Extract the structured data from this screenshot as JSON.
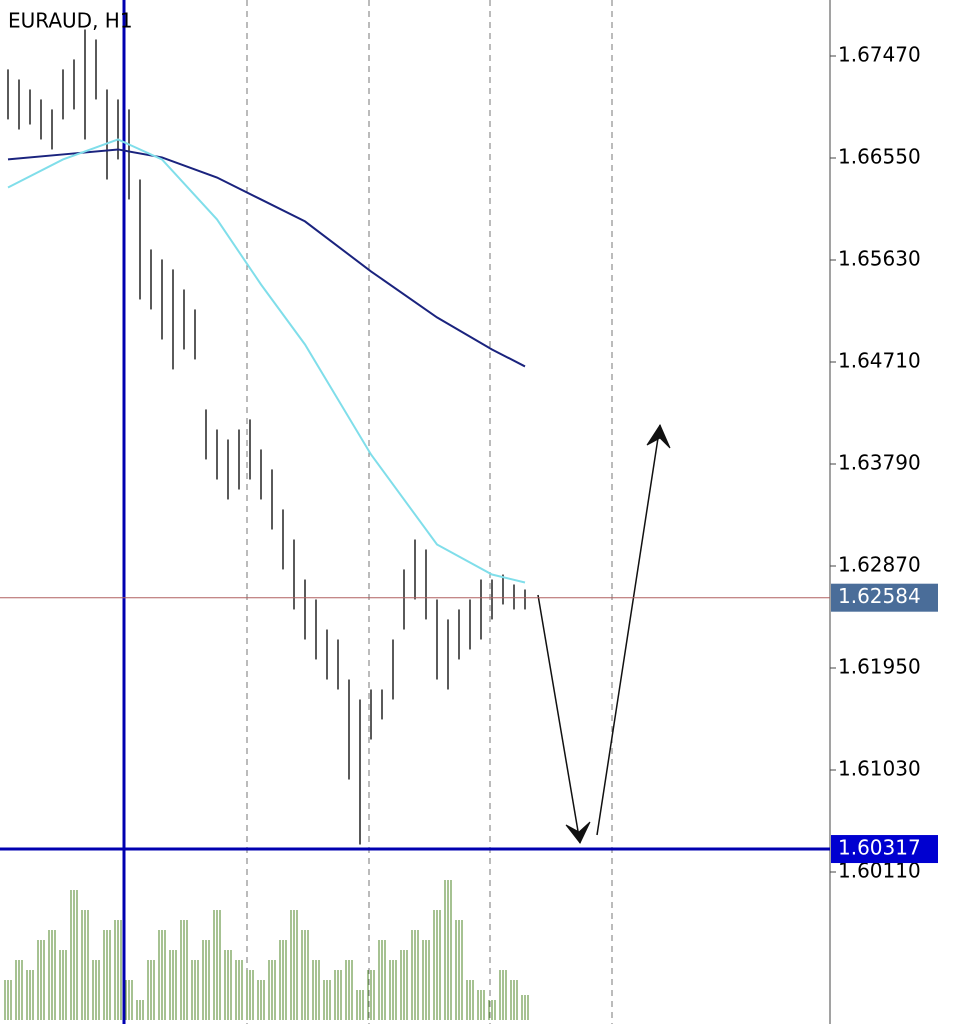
{
  "chart_data": {
    "type": "ohlc",
    "title": "EURAUD, H1",
    "ylim": [
      1.58775,
      1.67975
    ],
    "yticks": [
      {
        "value": 1.6747,
        "label": "1.67470"
      },
      {
        "value": 1.6655,
        "label": "1.66550"
      },
      {
        "value": 1.6563,
        "label": "1.65630"
      },
      {
        "value": 1.6471,
        "label": "1.64710"
      },
      {
        "value": 1.6379,
        "label": "1.63790"
      },
      {
        "value": 1.6287,
        "label": "1.62870"
      },
      {
        "value": 1.6195,
        "label": "1.61950"
      },
      {
        "value": 1.6103,
        "label": "1.61030"
      },
      {
        "value": 1.6011,
        "label": "1.60110"
      }
    ],
    "high": [
      1.67349,
      1.67258,
      1.67168,
      1.67078,
      1.66988,
      1.67349,
      1.67439,
      1.67709,
      1.67619,
      1.67168,
      1.67078,
      1.66988,
      1.66356,
      1.65725,
      1.65635,
      1.65545,
      1.65364,
      1.65184,
      1.64282,
      1.64101,
      1.64011,
      1.64101,
      1.64192,
      1.63921,
      1.63741,
      1.6338,
      1.63109,
      1.62748,
      1.62568,
      1.62297,
      1.62207,
      1.61846,
      1.61666,
      1.61756,
      1.61756,
      1.62207,
      1.62839,
      1.63109,
      1.63019,
      1.62568,
      1.62388,
      1.62478,
      1.62568,
      1.62748,
      1.62748,
      1.62793,
      1.62703,
      1.62658
    ],
    "low": [
      1.66898,
      1.66807,
      1.66852,
      1.66717,
      1.66627,
      1.66898,
      1.66988,
      1.66717,
      1.67078,
      1.66356,
      1.66537,
      1.66176,
      1.65274,
      1.65184,
      1.64913,
      1.64643,
      1.64823,
      1.64733,
      1.63831,
      1.6365,
      1.6347,
      1.6356,
      1.6365,
      1.6347,
      1.63199,
      1.62839,
      1.62478,
      1.62207,
      1.62027,
      1.61846,
      1.61756,
      1.60944,
      1.60358,
      1.61305,
      1.61486,
      1.61666,
      1.62297,
      1.62568,
      1.62388,
      1.61846,
      1.61756,
      1.62027,
      1.62117,
      1.62207,
      1.62388,
      1.62523,
      1.62478,
      1.62478
    ],
    "ma": [
      {
        "color": "#1a237e",
        "x": [
          0,
          5,
          10,
          14,
          19,
          23,
          27,
          33,
          39,
          44,
          47
        ],
        "values": [
          1.66537,
          1.66582,
          1.66627,
          1.66555,
          1.66374,
          1.66176,
          1.65978,
          1.65527,
          1.65112,
          1.64823,
          1.6467
        ]
      },
      {
        "color": "#80deea",
        "x": [
          0,
          5,
          10,
          14,
          19,
          23,
          27,
          33,
          39,
          44,
          47
        ],
        "values": [
          1.66284,
          1.66537,
          1.66717,
          1.66537,
          1.65996,
          1.65409,
          1.64868,
          1.63876,
          1.63064,
          1.62793,
          1.62721
        ]
      }
    ],
    "volume": [
      40,
      60,
      50,
      80,
      90,
      70,
      130,
      110,
      60,
      90,
      100,
      40,
      20,
      60,
      90,
      70,
      100,
      60,
      80,
      110,
      70,
      60,
      50,
      40,
      60,
      80,
      110,
      90,
      60,
      40,
      50,
      60,
      30,
      50,
      80,
      60,
      70,
      90,
      80,
      110,
      140,
      100,
      40,
      30,
      20,
      50,
      40,
      25
    ],
    "volume_ylim": [
      0,
      400
    ],
    "current_price": {
      "value": 1.62584,
      "label": "1.62584"
    },
    "level": {
      "value": 1.60317,
      "label": "1.60317"
    }
  }
}
